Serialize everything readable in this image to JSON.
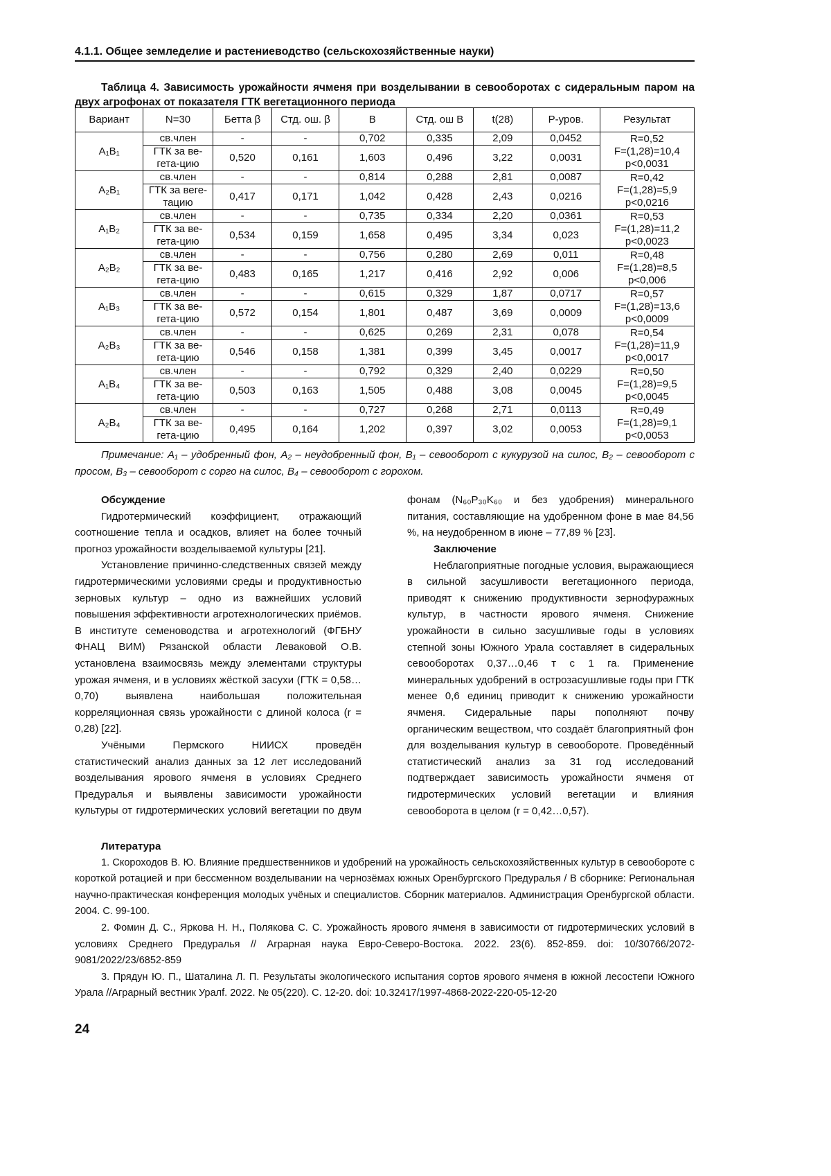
{
  "header": "4.1.1. Общее земледелие и растениеводство (сельскохозяйственные науки)",
  "table": {
    "caption": "Таблица 4. Зависимость урожайности ячменя при возделывании в севооборотах с сидеральным паром на двух агрофонах от показателя ГТК вегетационного периода",
    "columns": [
      "Вариант",
      "N=30",
      "Бетта β",
      "Стд. ош. β",
      "B",
      "Стд. ош B",
      "t(28)",
      "P-уров.",
      "Результат"
    ],
    "groups": [
      {
        "variant": "A₁B₁",
        "rows": [
          [
            "св.член",
            "-",
            "-",
            "0,702",
            "0,335",
            "2,09",
            "0,0452"
          ],
          [
            "ГТК за ве-гета-цию",
            "0,520",
            "0,161",
            "1,603",
            "0,496",
            "3,22",
            "0,0031"
          ]
        ],
        "result": [
          "R=0,52",
          "F=(1,28)=10,4",
          "p<0,0031"
        ]
      },
      {
        "variant": "A₂B₁",
        "rows": [
          [
            "св.член",
            "-",
            "-",
            "0,814",
            "0,288",
            "2,81",
            "0,0087"
          ],
          [
            "ГТК за веге-тацию",
            "0,417",
            "0,171",
            "1,042",
            "0,428",
            "2,43",
            "0,0216"
          ]
        ],
        "result": [
          "R=0,42",
          "F=(1,28)=5,9",
          "p<0,0216"
        ]
      },
      {
        "variant": "A₁B₂",
        "rows": [
          [
            "св.член",
            "-",
            "-",
            "0,735",
            "0,334",
            "2,20",
            "0,0361"
          ],
          [
            "ГТК за ве-гета-цию",
            "0,534",
            "0,159",
            "1,658",
            "0,495",
            "3,34",
            "0,023"
          ]
        ],
        "result": [
          "R=0,53",
          "F=(1,28)=11,2",
          "p<0,0023"
        ]
      },
      {
        "variant": "A₂B₂",
        "rows": [
          [
            "св.член",
            "-",
            "-",
            "0,756",
            "0,280",
            "2,69",
            "0,011"
          ],
          [
            "ГТК за ве-гета-цию",
            "0,483",
            "0,165",
            "1,217",
            "0,416",
            "2,92",
            "0,006"
          ]
        ],
        "result": [
          "R=0,48",
          "F=(1,28)=8,5",
          "p<0,006"
        ]
      },
      {
        "variant": "A₁B₃",
        "rows": [
          [
            "св.член",
            "-",
            "-",
            "0,615",
            "0,329",
            "1,87",
            "0,0717"
          ],
          [
            "ГТК за ве-гета-цию",
            "0,572",
            "0,154",
            "1,801",
            "0,487",
            "3,69",
            "0,0009"
          ]
        ],
        "result": [
          "R=0,57",
          "F=(1,28)=13,6",
          "p<0,0009"
        ]
      },
      {
        "variant": "A₂B₃",
        "rows": [
          [
            "св.член",
            "-",
            "-",
            "0,625",
            "0,269",
            "2,31",
            "0,078"
          ],
          [
            "ГТК за ве-гета-цию",
            "0,546",
            "0,158",
            "1,381",
            "0,399",
            "3,45",
            "0,0017"
          ]
        ],
        "result": [
          "R=0,54",
          "F=(1,28)=11,9",
          "p<0,0017"
        ]
      },
      {
        "variant": "A₁B₄",
        "rows": [
          [
            "св.член",
            "-",
            "-",
            "0,792",
            "0,329",
            "2,40",
            "0,0229"
          ],
          [
            "ГТК за ве-гета-цию",
            "0,503",
            "0,163",
            "1,505",
            "0,488",
            "3,08",
            "0,0045"
          ]
        ],
        "result": [
          "R=0,50",
          "F=(1,28)=9,5",
          "p<0,0045"
        ]
      },
      {
        "variant": "A₂B₄",
        "rows": [
          [
            "св.член",
            "-",
            "-",
            "0,727",
            "0,268",
            "2,71",
            "0,0113"
          ],
          [
            "ГТК за ве-гета-цию",
            "0,495",
            "0,164",
            "1,202",
            "0,397",
            "3,02",
            "0,0053"
          ]
        ],
        "result": [
          "R=0,49",
          "F=(1,28)=9,1",
          "p<0,0053"
        ]
      }
    ],
    "note": "Примечание: A₁ – удобренный фон, A₂ – неудобренный фон, B₁ – севооборот с кукурузой на силос, B₂ – севооборот с просом, B₃ – севооборот с сорго на силос, B₄ – севооборот с горохом."
  },
  "discussion": {
    "title": "Обсуждение",
    "paragraphs": [
      "Гидротермический коэффициент, отражающий соотношение тепла и осадков, влияет на более точный прогноз урожайности возделываемой культуры [21].",
      "Установление причинно-следственных связей между гидротермическими условиями среды и продуктивностью зерновых культур – одно из важнейших условий повышения эффективности агротехнологических приёмов. В институте семеноводства и агротехнологий (ФГБНУ ФНАЦ ВИМ) Рязанской области Леваковой О.В. установлена взаимосвязь между элементами структуры урожая ячменя, и в условиях жёсткой засухи (ГТК = 0,58…0,70) выявлена наибольшая положительная корреляционная связь урожайности с длиной колоса (r = 0,28) [22].",
      "Учёными Пермского НИИСХ проведён статистический анализ данных за 12 лет исследований возделывания ярового ячменя в условиях Среднего Предуралья и выявлены зависимости урожайности культуры от гидротермических условий вегетации по двум фонам (N₆₀P₃₀K₆₀ и без удобрения) минерального питания, составляющие на удобренном фоне в мае 84,56 %, на неудобренном в июне – 77,89 % [23]."
    ]
  },
  "conclusion": {
    "title": "Заключение",
    "paragraphs": [
      "Неблагоприятные погодные условия, выражающиеся в сильной засушливости вегетационного периода, приводят к снижению продуктивности зернофуражных культур, в частности ярового ячменя. Снижение урожайности в сильно засушливые годы в условиях степной зоны Южного Урала составляет в сидеральных севооборотах 0,37…0,46 т с 1 га. Применение минеральных удобрений в острозасушливые годы при ГТК менее 0,6 единиц приводит к снижению урожайности ячменя. Сидеральные пары пополняют почву органическим веществом, что создаёт благоприятный фон для возделывания культур в севообороте. Проведённый статистический анализ за 31 год исследований подтверждает зависимость урожайности ячменя от гидротермических условий вегетации и влияния севооборота в целом (r = 0,42…0,57)."
    ]
  },
  "literature": {
    "title": "Литература",
    "items": [
      "1. Скороходов В. Ю. Влияние предшественников и удобрений на урожайность сельскохозяйственных культур в севообороте с короткой ротацией и при бессменном возделывании на чернозёмах южных Оренбургского Предуралья / В сборнике: Региональная научно-практическая конференция молодых учёных и специалистов. Сборник материалов. Администрация Оренбургской области. 2004. С. 99-100.",
      "2. Фомин Д. С., Яркова Н. Н., Полякова С. С. Урожайность ярового ячменя в зависимости от гидротермических условий в условиях Среднего Предуралья // Аграрная наука Евро-Северо-Востока. 2022. 23(6). 852-859. doi: 10/30766/2072-9081/2022/23/6852-859",
      "3. Прядун Ю. П., Шаталина Л. П. Результаты экологического испытания сортов ярового ячменя в южной лесостепи Южного Урала //Аграрный вестник Уралf. 2022. № 05(220). С. 12-20. doi: 10.32417/1997-4868-2022-220-05-12-20"
    ]
  },
  "page_number": "24"
}
